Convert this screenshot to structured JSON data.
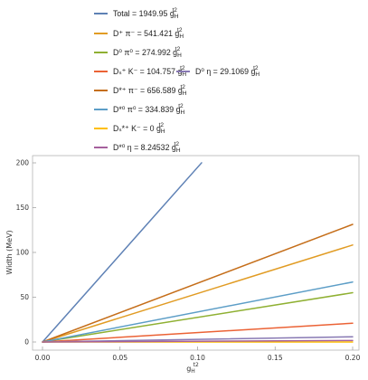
{
  "chart_data": {
    "type": "line",
    "ylabel": "Width (MeV)",
    "xlabel_main": "g",
    "xlabel_sub": "H",
    "xlabel_sup": "  t2",
    "xlim": [
      0,
      0.2
    ],
    "ylim": [
      0,
      200
    ],
    "xticks": [
      0.0,
      0.05,
      0.1,
      0.15,
      0.2
    ],
    "xtick_labels": [
      "0.00",
      "0.05",
      "0.10",
      "0.15",
      "0.20"
    ],
    "yticks": [
      0,
      50,
      100,
      150,
      200
    ],
    "ytick_labels": [
      "0",
      "50",
      "100",
      "150",
      "200"
    ],
    "grid": false,
    "legend_placement": "top",
    "series": [
      {
        "name": "Total = 1949.95 g",
        "sub": "H",
        "sup": "t2",
        "coef": 1949.95,
        "color": "#5E81B5",
        "xmax": 0.1026
      },
      {
        "name": "D⁺ π⁻ = 541.421 g",
        "sub": "H",
        "sup": "t2",
        "coef": 541.421,
        "color": "#E19C24",
        "xmax": 0.2
      },
      {
        "name": "D⁰ π⁰ = 274.992 g",
        "sub": "H",
        "sup": "t2",
        "coef": 274.992,
        "color": "#8FB032",
        "xmax": 0.2
      },
      {
        "name": "Dₛ⁺ K⁻ = 104.757 g",
        "sub": "H",
        "sup": "t2",
        "coef": 104.757,
        "color": "#EB6235",
        "xmax": 0.2
      },
      {
        "name": "D⁰ η = 29.1069 g",
        "sub": "H",
        "sup": "t2",
        "coef": 29.1069,
        "color": "#8778B3",
        "xmax": 0.2
      },
      {
        "name": "D*⁺ π⁻ = 656.589 g",
        "sub": "H",
        "sup": "t2",
        "coef": 656.589,
        "color": "#C56E1A",
        "xmax": 0.2
      },
      {
        "name": "D*⁰ π⁰ = 334.839 g",
        "sub": "H",
        "sup": "t2",
        "coef": 334.839,
        "color": "#5D9EC7",
        "xmax": 0.2
      },
      {
        "name": "Dₛ*⁺ K⁻ = 0 g",
        "sub": "H",
        "sup": "t2",
        "coef": 0,
        "color": "#FFBF00",
        "xmax": 0.2
      },
      {
        "name": "D*⁰ η = 8.24532 g",
        "sub": "H",
        "sup": "t2",
        "coef": 8.24532,
        "color": "#A5609D",
        "xmax": 0.2
      }
    ]
  }
}
